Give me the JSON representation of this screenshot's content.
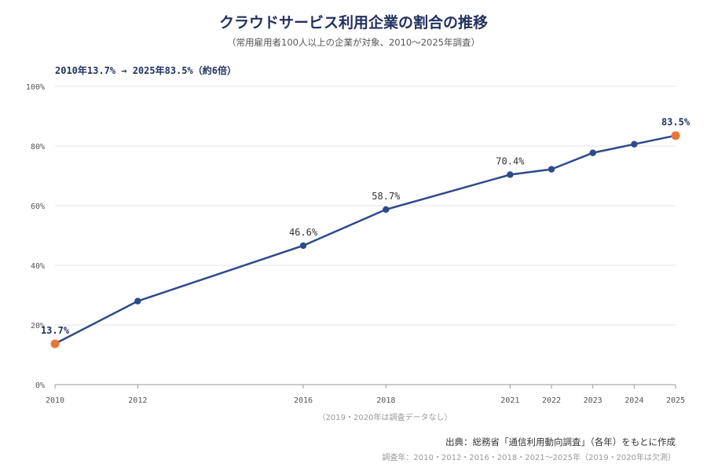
{
  "header": {
    "title": "クラウドサービス利用企業の割合の推移",
    "subtitle": "（常用雇用者100人以上の企業が対象、2010〜2025年調査）",
    "summary": "2010年13.7% → 2025年83.5%（約6倍）"
  },
  "footer": {
    "missing_note": "（2019・2020年は調査データなし）",
    "source": "出典：総務省「通信利用動向調査」（各年）をもとに作成",
    "survey_years": "調査年：2010・2012・2016・2018・2021〜2025年（2019・2020年は欠測）"
  },
  "colors": {
    "line": "#2d4a8a",
    "point": "#2d4a8a",
    "highlight": "#e8773a",
    "title": "#22325f",
    "grid": "#e6e6e6"
  },
  "chart_data": {
    "type": "line",
    "title": "クラウドサービス利用企業の割合の推移",
    "xlabel": "",
    "ylabel": "",
    "ylim": [
      0,
      100
    ],
    "xlim": [
      2010,
      2025
    ],
    "y_ticks": [
      0,
      20,
      40,
      60,
      80,
      100
    ],
    "y_tick_labels": [
      "0%",
      "20%",
      "40%",
      "60%",
      "80%",
      "100%"
    ],
    "x_ticks": [
      2010,
      2012,
      2016,
      2018,
      2021,
      2022,
      2023,
      2024,
      2025
    ],
    "x_tick_labels": [
      "2010",
      "2012",
      "2016",
      "2018",
      "2021",
      "2022",
      "2023",
      "2024",
      "2025"
    ],
    "grid": true,
    "series": [
      {
        "x": [
          2010,
          2012,
          2016,
          2018,
          2021,
          2022,
          2023,
          2024,
          2025
        ],
        "values": [
          13.7,
          28.0,
          46.6,
          58.7,
          70.4,
          72.2,
          77.7,
          80.6,
          83.5
        ]
      }
    ],
    "data_labels": [
      {
        "x": 2010,
        "y": 13.7,
        "text": "13.7%",
        "highlight": true
      },
      {
        "x": 2016,
        "y": 46.6,
        "text": "46.6%",
        "highlight": false
      },
      {
        "x": 2018,
        "y": 58.7,
        "text": "58.7%",
        "highlight": false
      },
      {
        "x": 2021,
        "y": 70.4,
        "text": "70.4%",
        "highlight": false
      },
      {
        "x": 2025,
        "y": 83.5,
        "text": "83.5%",
        "highlight": true
      }
    ],
    "highlight_x": [
      2010,
      2025
    ]
  }
}
